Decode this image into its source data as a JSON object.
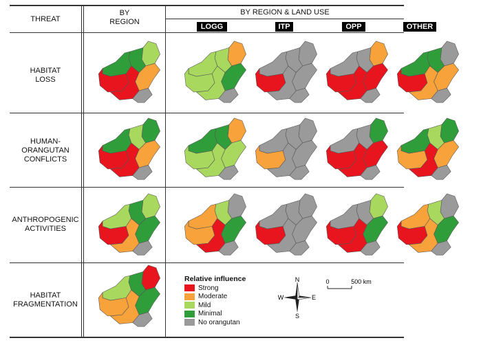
{
  "header": {
    "threat": "THREAT",
    "by_region": "BY\nREGION",
    "by_region_land_use": "BY REGION & LAND USE",
    "land_uses": [
      "LOGG",
      "ITP",
      "OPP",
      "OTHER"
    ]
  },
  "colors": {
    "Strong": "#e8141e",
    "Moderate": "#f7a23a",
    "Mild": "#a8d85e",
    "Minimal": "#2f9e3a",
    "No orangutan": "#9a9a9a"
  },
  "rows": [
    {
      "label": "HABITAT\nLOSS",
      "maps": [
        {
          "ne": "Mild",
          "n": "Minimal",
          "nw": "Minimal",
          "e": "Moderate",
          "w": "Strong",
          "s": "Strong",
          "se": "No orangutan"
        },
        {
          "ne": "Moderate",
          "n": "Mild",
          "nw": "Mild",
          "e": "Minimal",
          "w": "Mild",
          "s": "Mild",
          "se": "No orangutan"
        },
        {
          "ne": "No orangutan",
          "n": "No orangutan",
          "nw": "No orangutan",
          "e": "No orangutan",
          "w": "Strong",
          "s": "No orangutan",
          "se": "No orangutan"
        },
        {
          "ne": "Moderate",
          "n": "No orangutan",
          "nw": "No orangutan",
          "e": "Strong",
          "w": "Strong",
          "s": "Strong",
          "se": "No orangutan"
        },
        {
          "ne": "No orangutan",
          "n": "Minimal",
          "nw": "Minimal",
          "e": "Moderate",
          "w": "Strong",
          "s": "Moderate",
          "se": "No orangutan"
        }
      ]
    },
    {
      "label": "HUMAN-\nORANGUTAN\nCONFLICTS",
      "maps": [
        {
          "ne": "Minimal",
          "n": "Mild",
          "nw": "Minimal",
          "e": "Moderate",
          "w": "Strong",
          "s": "Strong",
          "se": "No orangutan"
        },
        {
          "ne": "Moderate",
          "n": "Minimal",
          "nw": "Minimal",
          "e": "Mild",
          "w": "Mild",
          "s": "Mild",
          "se": "No orangutan"
        },
        {
          "ne": "No orangutan",
          "n": "No orangutan",
          "nw": "No orangutan",
          "e": "No orangutan",
          "w": "Moderate",
          "s": "No orangutan",
          "se": "No orangutan"
        },
        {
          "ne": "Minimal",
          "n": "No orangutan",
          "nw": "No orangutan",
          "e": "Strong",
          "w": "Strong",
          "s": "Strong",
          "se": "No orangutan"
        },
        {
          "ne": "Minimal",
          "n": "Mild",
          "nw": "Minimal",
          "e": "Moderate",
          "w": "Moderate",
          "s": "Strong",
          "se": "No orangutan"
        }
      ]
    },
    {
      "label": "ANTHROPOGENIC\nACTIVITIES",
      "maps": [
        {
          "ne": "Mild",
          "n": "Minimal",
          "nw": "Mild",
          "e": "Minimal",
          "w": "Strong",
          "s": "Moderate",
          "se": "No orangutan"
        },
        {
          "ne": "No orangutan",
          "n": "Mild",
          "nw": "Moderate",
          "e": "Minimal",
          "w": "Moderate",
          "s": "Strong",
          "se": "No orangutan"
        },
        {
          "ne": "No orangutan",
          "n": "No orangutan",
          "nw": "No orangutan",
          "e": "No orangutan",
          "w": "Strong",
          "s": "No orangutan",
          "se": "No orangutan"
        },
        {
          "ne": "Mild",
          "n": "No orangutan",
          "nw": "No orangutan",
          "e": "Minimal",
          "w": "Strong",
          "s": "Strong",
          "se": "No orangutan"
        },
        {
          "ne": "No orangutan",
          "n": "Mild",
          "nw": "Moderate",
          "e": "Minimal",
          "w": "Strong",
          "s": "Moderate",
          "se": "No orangutan"
        }
      ]
    },
    {
      "label": "HABITAT\nFRAGMENTATION",
      "maps": [
        {
          "ne": "Strong",
          "n": "Minimal",
          "nw": "Mild",
          "e": "Minimal",
          "w": "Moderate",
          "s": "Moderate",
          "se": "No orangutan"
        }
      ]
    }
  ],
  "legend": {
    "title": "Relative influence",
    "items": [
      "Strong",
      "Moderate",
      "Mild",
      "Minimal",
      "No orangutan"
    ]
  },
  "compass": {
    "n": "N",
    "s": "S",
    "e": "E",
    "w": "W"
  },
  "scale": {
    "start": "0",
    "end": "500 km"
  }
}
